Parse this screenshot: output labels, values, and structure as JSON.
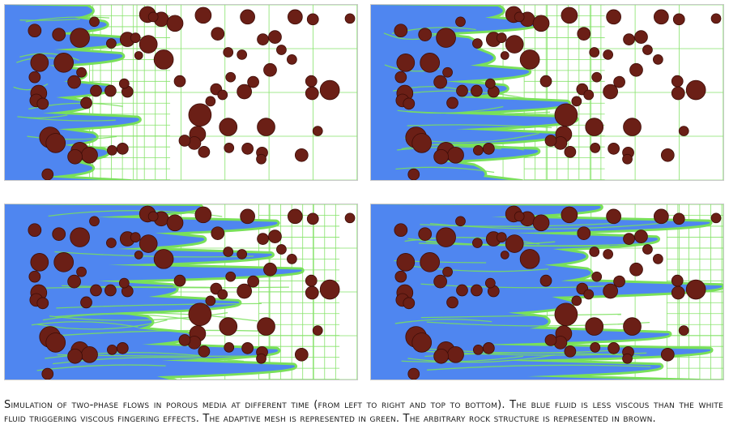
{
  "caption": "Simulation of two-phase flows in porous media at different time (from left to right and top to bottom). The blue fluid is less viscous than the white fluid triggering viscous fingering effects. The adaptive mesh is represented in green. The arbitrary rock structure is represented in brown.",
  "colors": {
    "less_viscous_fluid": "#4f86f0",
    "more_viscous_fluid": "#ffffff",
    "adaptive_mesh": "#79e05a",
    "rock": "#6b1f16",
    "rock_outline": "#3d0d08"
  },
  "panels": [
    {
      "name": "simulation-frame-1",
      "time_order": 1
    },
    {
      "name": "simulation-frame-2",
      "time_order": 2
    },
    {
      "name": "simulation-frame-3",
      "time_order": 3
    },
    {
      "name": "simulation-frame-4",
      "time_order": 4
    }
  ]
}
